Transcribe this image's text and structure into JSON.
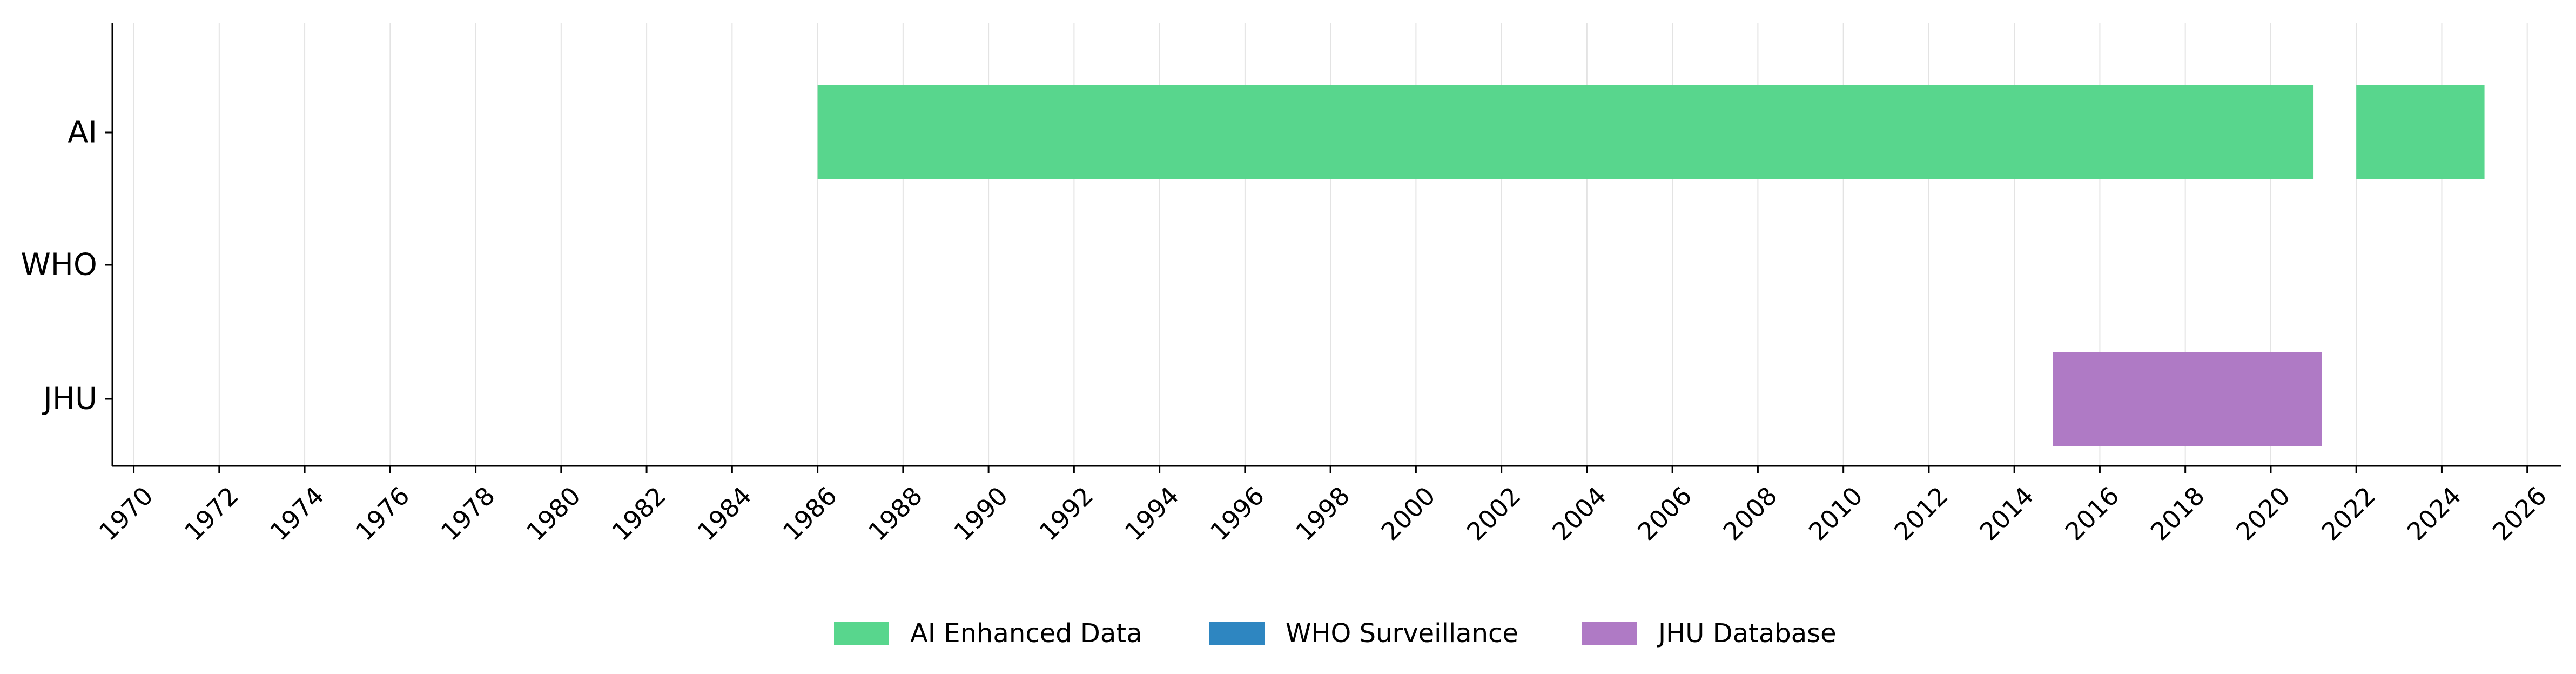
{
  "chart_data": {
    "type": "timeline",
    "title": "",
    "xlabel": "",
    "ylabel": "",
    "xlim": [
      1969.5,
      2026.8
    ],
    "x_ticks": [
      1970,
      1972,
      1974,
      1976,
      1978,
      1980,
      1982,
      1984,
      1986,
      1988,
      1990,
      1992,
      1994,
      1996,
      1998,
      2000,
      2002,
      2004,
      2006,
      2008,
      2010,
      2012,
      2014,
      2016,
      2018,
      2020,
      2022,
      2024,
      2026
    ],
    "categories": [
      "AI",
      "WHO",
      "JHU"
    ],
    "grid": "vertical",
    "legend_position": "bottom-center",
    "series": [
      {
        "name": "AI Enhanced Data",
        "category": "AI",
        "color": "#58d68d",
        "intervals": [
          [
            1986.0,
            2021.0
          ],
          [
            2022.0,
            2025.0
          ]
        ]
      },
      {
        "name": "WHO Surveillance",
        "category": "WHO",
        "color": "#2e86c1",
        "intervals": []
      },
      {
        "name": "JHU Database",
        "category": "JHU",
        "color": "#af7ac5",
        "intervals": [
          [
            2014.9,
            2021.2
          ]
        ]
      }
    ]
  }
}
